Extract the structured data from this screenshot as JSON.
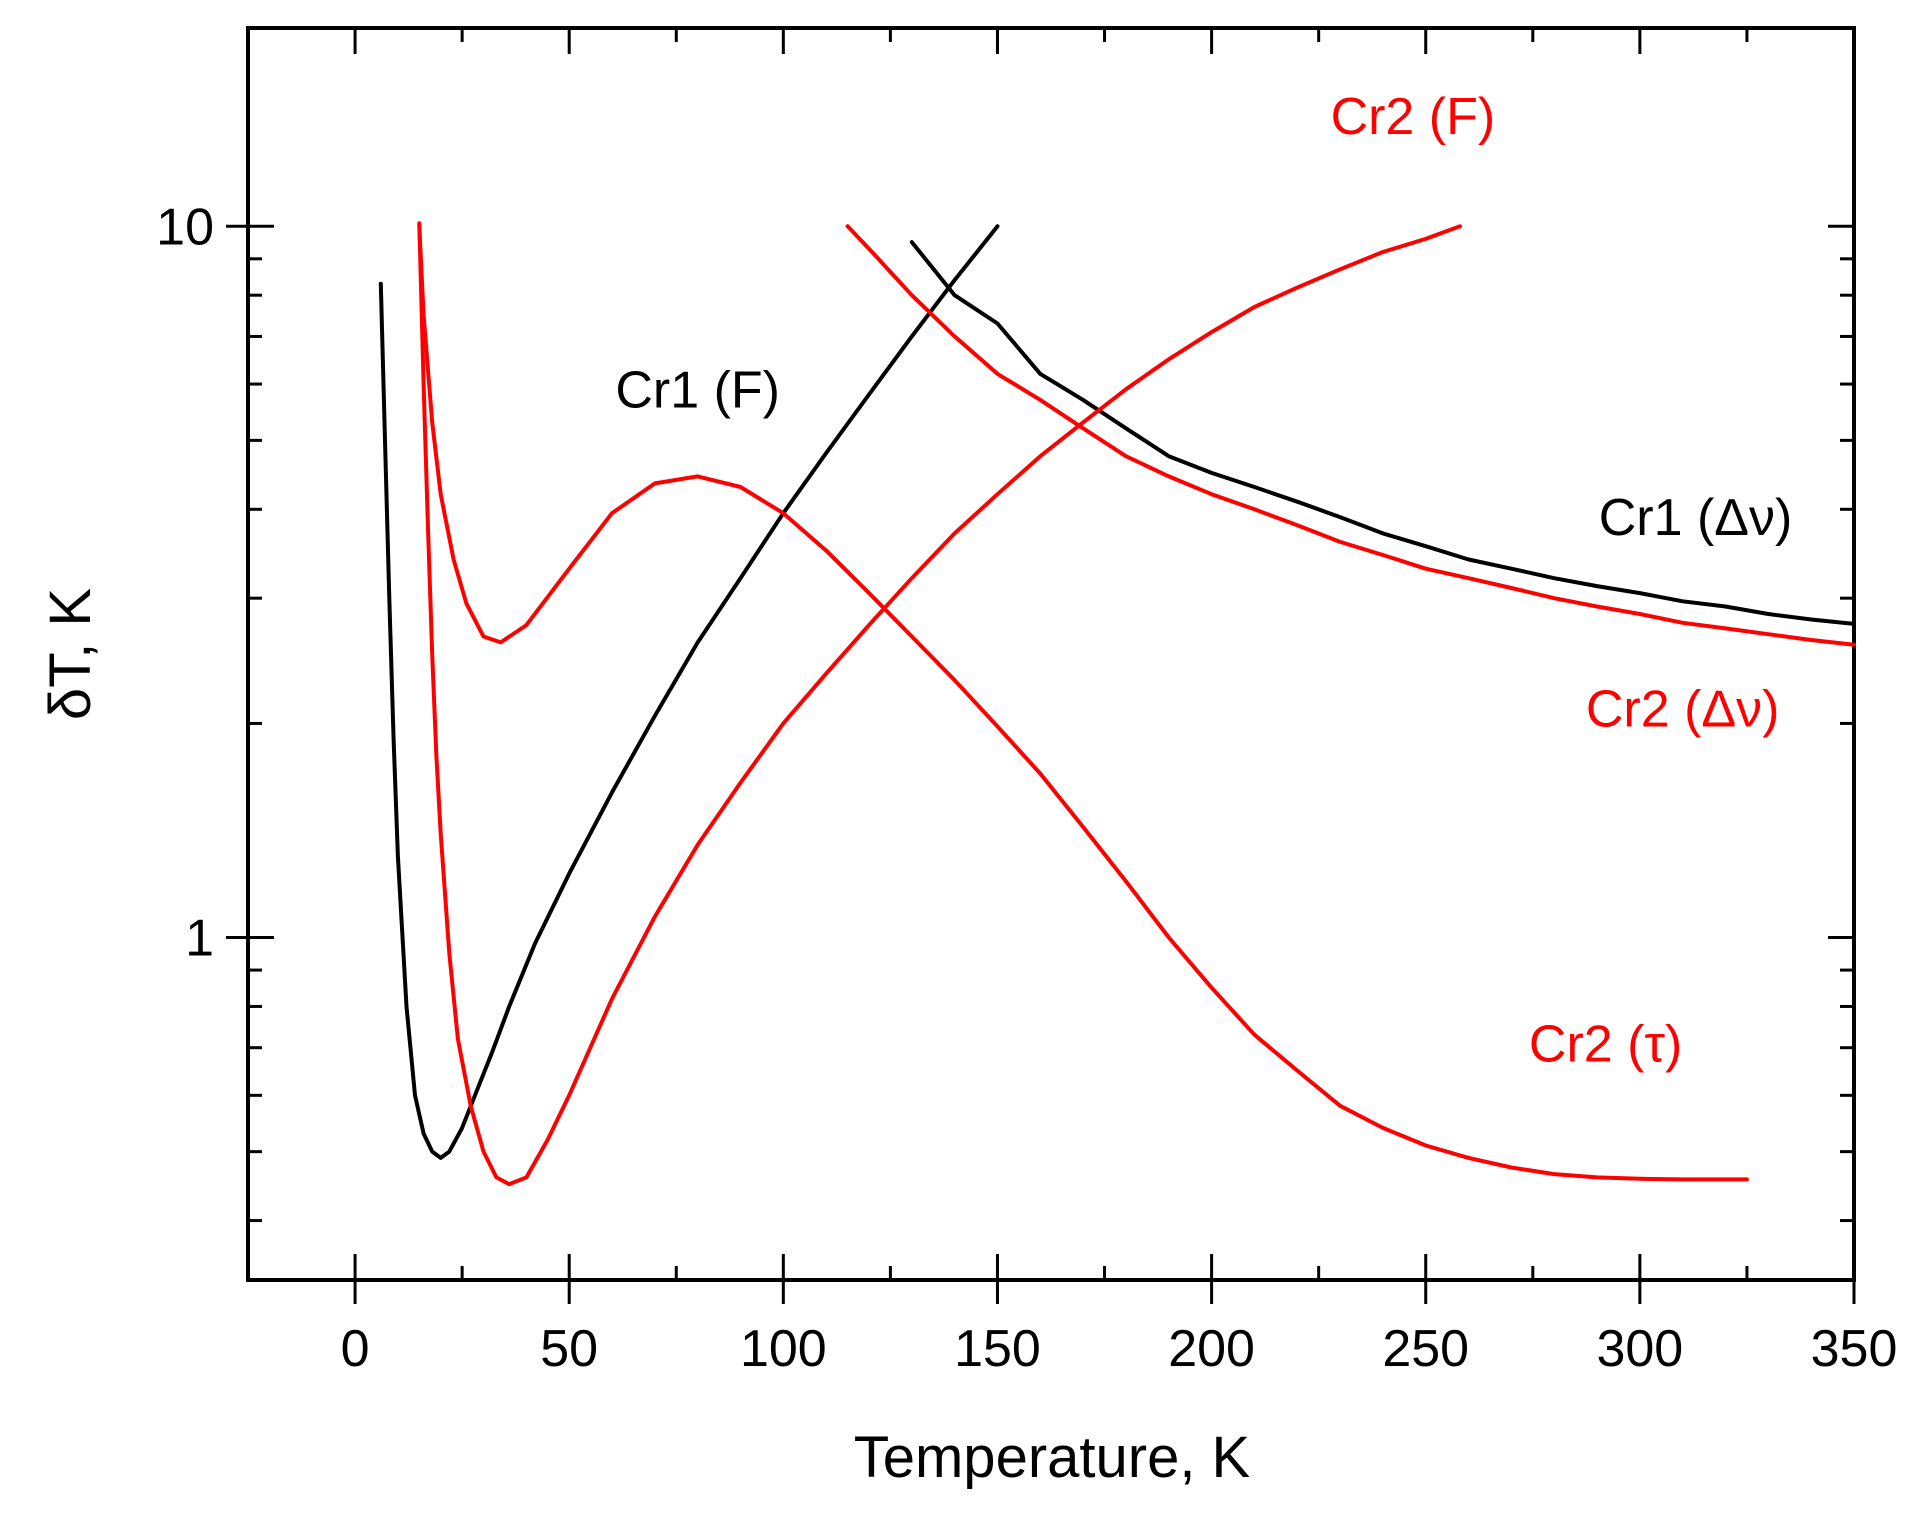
{
  "chart_data": {
    "type": "line",
    "xlabel": "Temperature, K",
    "ylabel": "δT, K",
    "xlim": [
      -25,
      350
    ],
    "ylim": [
      0.33,
      19
    ],
    "yscale": "log",
    "grid": false,
    "x_ticks": [
      0,
      50,
      100,
      150,
      200,
      250,
      300,
      350
    ],
    "x_tick_labels": [
      "0",
      "50",
      "100",
      "150",
      "200",
      "250",
      "300",
      "350"
    ],
    "y_ticks": [
      1,
      10
    ],
    "y_tick_labels": [
      "1",
      "10"
    ],
    "series": [
      {
        "name": "Cr1 (F)",
        "color": "#000000",
        "label_at": [
          80,
          5.9
        ],
        "points": [
          [
            6,
            8.3
          ],
          [
            7,
            5.0
          ],
          [
            8,
            3.0
          ],
          [
            9,
            1.9
          ],
          [
            10,
            1.3
          ],
          [
            12,
            0.8
          ],
          [
            14,
            0.6
          ],
          [
            16,
            0.53
          ],
          [
            18,
            0.5
          ],
          [
            20,
            0.49
          ],
          [
            22,
            0.5
          ],
          [
            25,
            0.54
          ],
          [
            28,
            0.6
          ],
          [
            32,
            0.69
          ],
          [
            36,
            0.8
          ],
          [
            42,
            0.98
          ],
          [
            50,
            1.23
          ],
          [
            60,
            1.6
          ],
          [
            70,
            2.05
          ],
          [
            80,
            2.6
          ],
          [
            90,
            3.2
          ],
          [
            100,
            3.95
          ],
          [
            110,
            4.8
          ],
          [
            120,
            5.8
          ],
          [
            130,
            7.0
          ],
          [
            140,
            8.4
          ],
          [
            150,
            10.0
          ]
        ]
      },
      {
        "name": "Cr1 (Δν)",
        "color": "#000000",
        "label_at": [
          313,
          3.9
        ],
        "points": [
          [
            130,
            9.5
          ],
          [
            140,
            8.0
          ],
          [
            150,
            7.3
          ],
          [
            160,
            6.2
          ],
          [
            170,
            5.7
          ],
          [
            180,
            5.2
          ],
          [
            190,
            4.75
          ],
          [
            200,
            4.5
          ],
          [
            210,
            4.3
          ],
          [
            220,
            4.1
          ],
          [
            230,
            3.9
          ],
          [
            240,
            3.7
          ],
          [
            250,
            3.55
          ],
          [
            260,
            3.4
          ],
          [
            270,
            3.3
          ],
          [
            280,
            3.2
          ],
          [
            290,
            3.12
          ],
          [
            300,
            3.05
          ],
          [
            310,
            2.97
          ],
          [
            320,
            2.92
          ],
          [
            330,
            2.85
          ],
          [
            340,
            2.8
          ],
          [
            350,
            2.76
          ]
        ]
      },
      {
        "name": "Cr2 (F)",
        "color": "#ff0000",
        "label_at": [
          247,
          14.3
        ],
        "points": [
          [
            15,
            10.1
          ],
          [
            16,
            6.0
          ],
          [
            17,
            3.8
          ],
          [
            18,
            2.5
          ],
          [
            19,
            1.8
          ],
          [
            20,
            1.4
          ],
          [
            22,
            0.95
          ],
          [
            24,
            0.72
          ],
          [
            27,
            0.58
          ],
          [
            30,
            0.5
          ],
          [
            33,
            0.46
          ],
          [
            36,
            0.45
          ],
          [
            40,
            0.46
          ],
          [
            45,
            0.52
          ],
          [
            50,
            0.6
          ],
          [
            60,
            0.82
          ],
          [
            70,
            1.07
          ],
          [
            80,
            1.35
          ],
          [
            90,
            1.65
          ],
          [
            100,
            2.0
          ],
          [
            110,
            2.35
          ],
          [
            120,
            2.75
          ],
          [
            130,
            3.2
          ],
          [
            140,
            3.7
          ],
          [
            150,
            4.2
          ],
          [
            160,
            4.75
          ],
          [
            170,
            5.3
          ],
          [
            180,
            5.9
          ],
          [
            190,
            6.5
          ],
          [
            200,
            7.1
          ],
          [
            210,
            7.7
          ],
          [
            220,
            8.2
          ],
          [
            230,
            8.7
          ],
          [
            240,
            9.2
          ],
          [
            250,
            9.6
          ],
          [
            258,
            10.0
          ]
        ]
      },
      {
        "name": "Cr2 (Δν)",
        "color": "#ff0000",
        "label_at": [
          310,
          2.1
        ],
        "points": [
          [
            115,
            10.0
          ],
          [
            120,
            9.3
          ],
          [
            130,
            8.0
          ],
          [
            140,
            7.0
          ],
          [
            150,
            6.2
          ],
          [
            160,
            5.7
          ],
          [
            170,
            5.2
          ],
          [
            180,
            4.75
          ],
          [
            190,
            4.45
          ],
          [
            200,
            4.2
          ],
          [
            210,
            4.0
          ],
          [
            220,
            3.8
          ],
          [
            230,
            3.6
          ],
          [
            240,
            3.45
          ],
          [
            250,
            3.3
          ],
          [
            260,
            3.2
          ],
          [
            270,
            3.1
          ],
          [
            280,
            3.0
          ],
          [
            290,
            2.92
          ],
          [
            300,
            2.85
          ],
          [
            310,
            2.77
          ],
          [
            320,
            2.72
          ],
          [
            330,
            2.67
          ],
          [
            340,
            2.62
          ],
          [
            350,
            2.58
          ]
        ]
      },
      {
        "name": "Cr2 (τ)",
        "color": "#ff0000",
        "label_at": [
          292,
          0.71
        ],
        "points": [
          [
            15,
            10.0
          ],
          [
            16,
            7.5
          ],
          [
            18,
            5.3
          ],
          [
            20,
            4.2
          ],
          [
            23,
            3.4
          ],
          [
            26,
            2.95
          ],
          [
            30,
            2.65
          ],
          [
            34,
            2.6
          ],
          [
            40,
            2.75
          ],
          [
            50,
            3.3
          ],
          [
            60,
            3.95
          ],
          [
            70,
            4.35
          ],
          [
            80,
            4.45
          ],
          [
            90,
            4.3
          ],
          [
            100,
            3.95
          ],
          [
            110,
            3.5
          ],
          [
            120,
            3.05
          ],
          [
            130,
            2.65
          ],
          [
            140,
            2.3
          ],
          [
            150,
            1.98
          ],
          [
            160,
            1.7
          ],
          [
            170,
            1.43
          ],
          [
            180,
            1.2
          ],
          [
            190,
            1.0
          ],
          [
            200,
            0.85
          ],
          [
            210,
            0.73
          ],
          [
            220,
            0.65
          ],
          [
            230,
            0.58
          ],
          [
            240,
            0.54
          ],
          [
            250,
            0.51
          ],
          [
            260,
            0.49
          ],
          [
            270,
            0.475
          ],
          [
            280,
            0.465
          ],
          [
            290,
            0.46
          ],
          [
            300,
            0.458
          ],
          [
            310,
            0.457
          ],
          [
            325,
            0.457
          ]
        ]
      }
    ]
  }
}
